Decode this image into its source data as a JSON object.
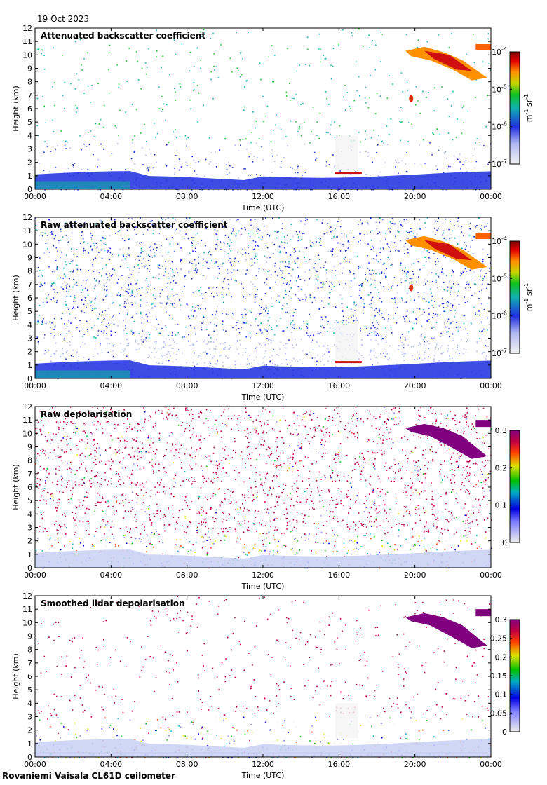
{
  "page": {
    "date": "19 Oct 2023",
    "footer": "Rovaniemi Vaisala CL61D ceilometer"
  },
  "chart_data": [
    {
      "type": "heatmap",
      "title": "Attenuated backscatter coefficient",
      "xlabel": "Time (UTC)",
      "ylabel": "Height (km)",
      "x_ticks": [
        "00:00",
        "04:00",
        "08:00",
        "12:00",
        "16:00",
        "20:00",
        "00:00"
      ],
      "y_ticks": [
        0,
        1,
        2,
        3,
        4,
        5,
        6,
        7,
        8,
        9,
        10,
        11,
        12
      ],
      "ylim": [
        0,
        12
      ],
      "xlim_hours": [
        0,
        24
      ],
      "colorbar": {
        "scale": "log",
        "ticks": [
          {
            "base": "10",
            "exp": "-7",
            "value": 1e-07
          },
          {
            "base": "10",
            "exp": "-6",
            "value": 1e-06
          },
          {
            "base": "10",
            "exp": "-5",
            "value": 1e-05
          },
          {
            "base": "10",
            "exp": "-4",
            "value": 0.0001
          }
        ],
        "unit": {
          "m": "m",
          "m_exp": "-1",
          "sr": "sr",
          "sr_exp": "-1"
        }
      },
      "features": [
        {
          "name": "boundary layer",
          "time_range_h": [
            0,
            24
          ],
          "height_range_km": [
            0,
            1.3
          ],
          "intensity": "medium"
        },
        {
          "name": "cloud base",
          "time_range_h": [
            15.8,
            17.2
          ],
          "height_km": 1.2,
          "intensity": "high"
        },
        {
          "name": "high cloud",
          "time_range_h": [
            19.5,
            24
          ],
          "height_range_km": [
            8,
            10.7
          ],
          "intensity": "high"
        },
        {
          "name": "isolated cloud",
          "time_range_h": [
            19.7,
            19.9
          ],
          "height_range_km": [
            6.5,
            7
          ],
          "intensity": "high"
        }
      ]
    },
    {
      "type": "heatmap",
      "title": "Raw attenuated backscatter coefficient",
      "xlabel": "Time (UTC)",
      "ylabel": "Height (km)",
      "x_ticks": [
        "00:00",
        "04:00",
        "08:00",
        "12:00",
        "16:00",
        "20:00",
        "00:00"
      ],
      "y_ticks": [
        0,
        1,
        2,
        3,
        4,
        5,
        6,
        7,
        8,
        9,
        10,
        11,
        12
      ],
      "ylim": [
        0,
        12
      ],
      "xlim_hours": [
        0,
        24
      ],
      "colorbar": {
        "scale": "log",
        "ticks": [
          {
            "base": "10",
            "exp": "-7",
            "value": 1e-07
          },
          {
            "base": "10",
            "exp": "-6",
            "value": 1e-06
          },
          {
            "base": "10",
            "exp": "-5",
            "value": 1e-05
          },
          {
            "base": "10",
            "exp": "-4",
            "value": 0.0001
          }
        ],
        "unit": {
          "m": "m",
          "m_exp": "-1",
          "sr": "sr",
          "sr_exp": "-1"
        }
      }
    },
    {
      "type": "heatmap",
      "title": "Raw depolarisation",
      "xlabel": "Time (UTC)",
      "ylabel": "Height (km)",
      "x_ticks": [
        "00:00",
        "04:00",
        "08:00",
        "12:00",
        "16:00",
        "20:00",
        "00:00"
      ],
      "y_ticks": [
        0,
        1,
        2,
        3,
        4,
        5,
        6,
        7,
        8,
        9,
        10,
        11,
        12
      ],
      "ylim": [
        0,
        12
      ],
      "xlim_hours": [
        0,
        24
      ],
      "colorbar": {
        "scale": "linear",
        "range": [
          0,
          0.3
        ],
        "ticks": [
          "0",
          "0.1",
          "0.2",
          "0.3"
        ]
      }
    },
    {
      "type": "heatmap",
      "title": "Smoothed lidar depolarisation",
      "xlabel": "Time (UTC)",
      "ylabel": "Height (km)",
      "x_ticks": [
        "00:00",
        "04:00",
        "08:00",
        "12:00",
        "16:00",
        "20:00",
        "00:00"
      ],
      "y_ticks": [
        0,
        1,
        2,
        3,
        4,
        5,
        6,
        7,
        8,
        9,
        10,
        11,
        12
      ],
      "ylim": [
        0,
        12
      ],
      "xlim_hours": [
        0,
        24
      ],
      "colorbar": {
        "scale": "linear",
        "range": [
          0,
          0.3
        ],
        "ticks": [
          "0",
          "0.05",
          "0.1",
          "0.15",
          "0.2",
          "0.25",
          "0.3"
        ]
      }
    }
  ]
}
